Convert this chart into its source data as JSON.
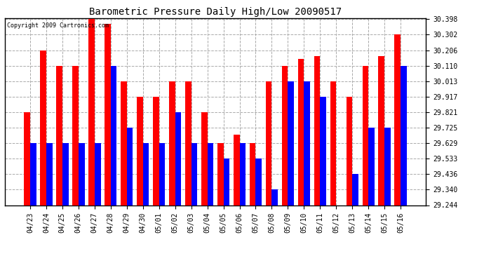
{
  "title": "Barometric Pressure Daily High/Low 20090517",
  "copyright": "Copyright 2009 Cartronics.com",
  "categories": [
    "04/23",
    "04/24",
    "04/25",
    "04/26",
    "04/27",
    "04/28",
    "04/29",
    "04/30",
    "05/01",
    "05/02",
    "05/03",
    "05/04",
    "05/05",
    "05/06",
    "05/07",
    "05/08",
    "05/09",
    "05/10",
    "05/11",
    "05/12",
    "05/13",
    "05/14",
    "05/15",
    "05/16"
  ],
  "highs": [
    29.821,
    30.206,
    30.11,
    30.11,
    30.398,
    30.37,
    30.013,
    29.917,
    29.917,
    30.013,
    30.013,
    29.821,
    29.629,
    29.68,
    29.629,
    30.013,
    30.11,
    30.15,
    30.17,
    30.013,
    29.917,
    30.11,
    30.17,
    30.302
  ],
  "lows": [
    29.629,
    29.629,
    29.629,
    29.629,
    29.629,
    30.11,
    29.725,
    29.629,
    29.629,
    29.821,
    29.629,
    29.629,
    29.533,
    29.629,
    29.533,
    29.34,
    30.013,
    30.013,
    29.917,
    29.244,
    29.436,
    29.725,
    29.725,
    30.11
  ],
  "high_color": "#FF0000",
  "low_color": "#0000FF",
  "bg_color": "#FFFFFF",
  "plot_bg_color": "#FFFFFF",
  "grid_color": "#AAAAAA",
  "ymin": 29.244,
  "ymax": 30.398,
  "yticks": [
    30.398,
    30.302,
    30.206,
    30.11,
    30.013,
    29.917,
    29.821,
    29.725,
    29.629,
    29.533,
    29.436,
    29.34,
    29.244
  ],
  "bar_width": 0.38
}
